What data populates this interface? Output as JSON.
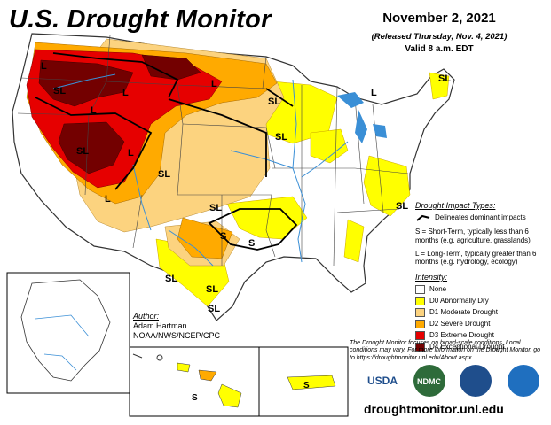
{
  "header": {
    "title": "U.S. Drought Monitor",
    "date": "November 2, 2021",
    "released": "(Released Thursday, Nov. 4, 2021)",
    "valid": "Valid 8 a.m. EDT"
  },
  "impact_types": {
    "heading": "Drought Impact Types:",
    "delineates": "Delineates dominant impacts",
    "short_term": "S = Short-Term, typically less than 6 months (e.g. agriculture, grasslands)",
    "long_term": "L = Long-Term, typically greater than 6 months (e.g. hydrology, ecology)"
  },
  "intensity": {
    "heading": "Intensity:",
    "levels": [
      {
        "label": "None",
        "color": "#ffffff"
      },
      {
        "label": "D0 Abnormally Dry",
        "color": "#ffff00"
      },
      {
        "label": "D1 Moderate Drought",
        "color": "#fcd37f"
      },
      {
        "label": "D2 Severe Drought",
        "color": "#ffaa00"
      },
      {
        "label": "D3 Extreme Drought",
        "color": "#e60000"
      },
      {
        "label": "D4 Exceptional Drought",
        "color": "#730000"
      }
    ]
  },
  "author": {
    "heading": "Author:",
    "name": "Adam Hartman",
    "org": "NOAA/NWS/NCEP/CPC"
  },
  "note": "The Drought Monitor focuses on broad-scale conditions. Local conditions may vary. For more information on the Drought Monitor, go to https://droughtmonitor.unl.edu/About.aspx",
  "url": "droughtmonitor.unl.edu",
  "logos": {
    "usda": "USDA",
    "ndmc": "NDMC"
  },
  "map_labels": {
    "sl": "SL",
    "s": "S",
    "l": "L"
  },
  "colors": {
    "water": "#3a8fd6",
    "border": "#333333",
    "d0": "#ffff00",
    "d1": "#fcd37f",
    "d2": "#ffaa00",
    "d3": "#e60000",
    "d4": "#730000"
  }
}
